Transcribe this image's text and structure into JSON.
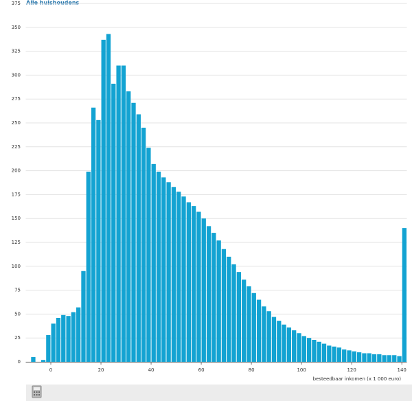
{
  "chart_data": {
    "type": "histogram",
    "title": "Alle huishoudens",
    "x_label": "besteedbaar inkomen (x 1 000 euro)",
    "color": "#13a3d2",
    "grid": true,
    "bins": [
      -8,
      -6,
      -4,
      -2,
      0,
      2,
      4,
      6,
      8,
      10,
      12,
      14,
      16,
      18,
      20,
      22,
      24,
      26,
      28,
      30,
      32,
      34,
      36,
      38,
      40,
      42,
      44,
      46,
      48,
      50,
      52,
      54,
      56,
      58,
      60,
      62,
      64,
      66,
      68,
      70,
      72,
      74,
      76,
      78,
      80,
      82,
      84,
      86,
      88,
      90,
      92,
      94,
      96,
      98,
      100,
      102,
      104,
      106,
      108,
      110,
      112,
      114,
      116,
      118,
      120,
      122,
      124,
      126,
      128,
      130,
      132,
      134,
      136,
      138,
      140,
      142
    ],
    "values": [
      5,
      0,
      2,
      28,
      40,
      46,
      49,
      48,
      52,
      57,
      95,
      199,
      266,
      253,
      337,
      343,
      291,
      310,
      310,
      283,
      271,
      259,
      245,
      224,
      207,
      199,
      193,
      188,
      183,
      178,
      173,
      167,
      163,
      157,
      150,
      142,
      135,
      127,
      118,
      110,
      102,
      94,
      86,
      79,
      72,
      65,
      58,
      53,
      47,
      43,
      39,
      36,
      33,
      30,
      27,
      25,
      23,
      21,
      19,
      17,
      16,
      15,
      13,
      12,
      11,
      10,
      9,
      9,
      8,
      8,
      7,
      7,
      7,
      6,
      140
    ],
    "xlim": [
      -10,
      142
    ],
    "xticks": [
      0,
      20,
      40,
      60,
      80,
      100,
      120,
      140
    ],
    "ylim": [
      0,
      375
    ],
    "yticks": [
      0,
      25,
      50,
      75,
      100,
      125,
      150,
      175,
      200,
      225,
      250,
      275,
      300,
      325,
      350,
      375
    ]
  }
}
